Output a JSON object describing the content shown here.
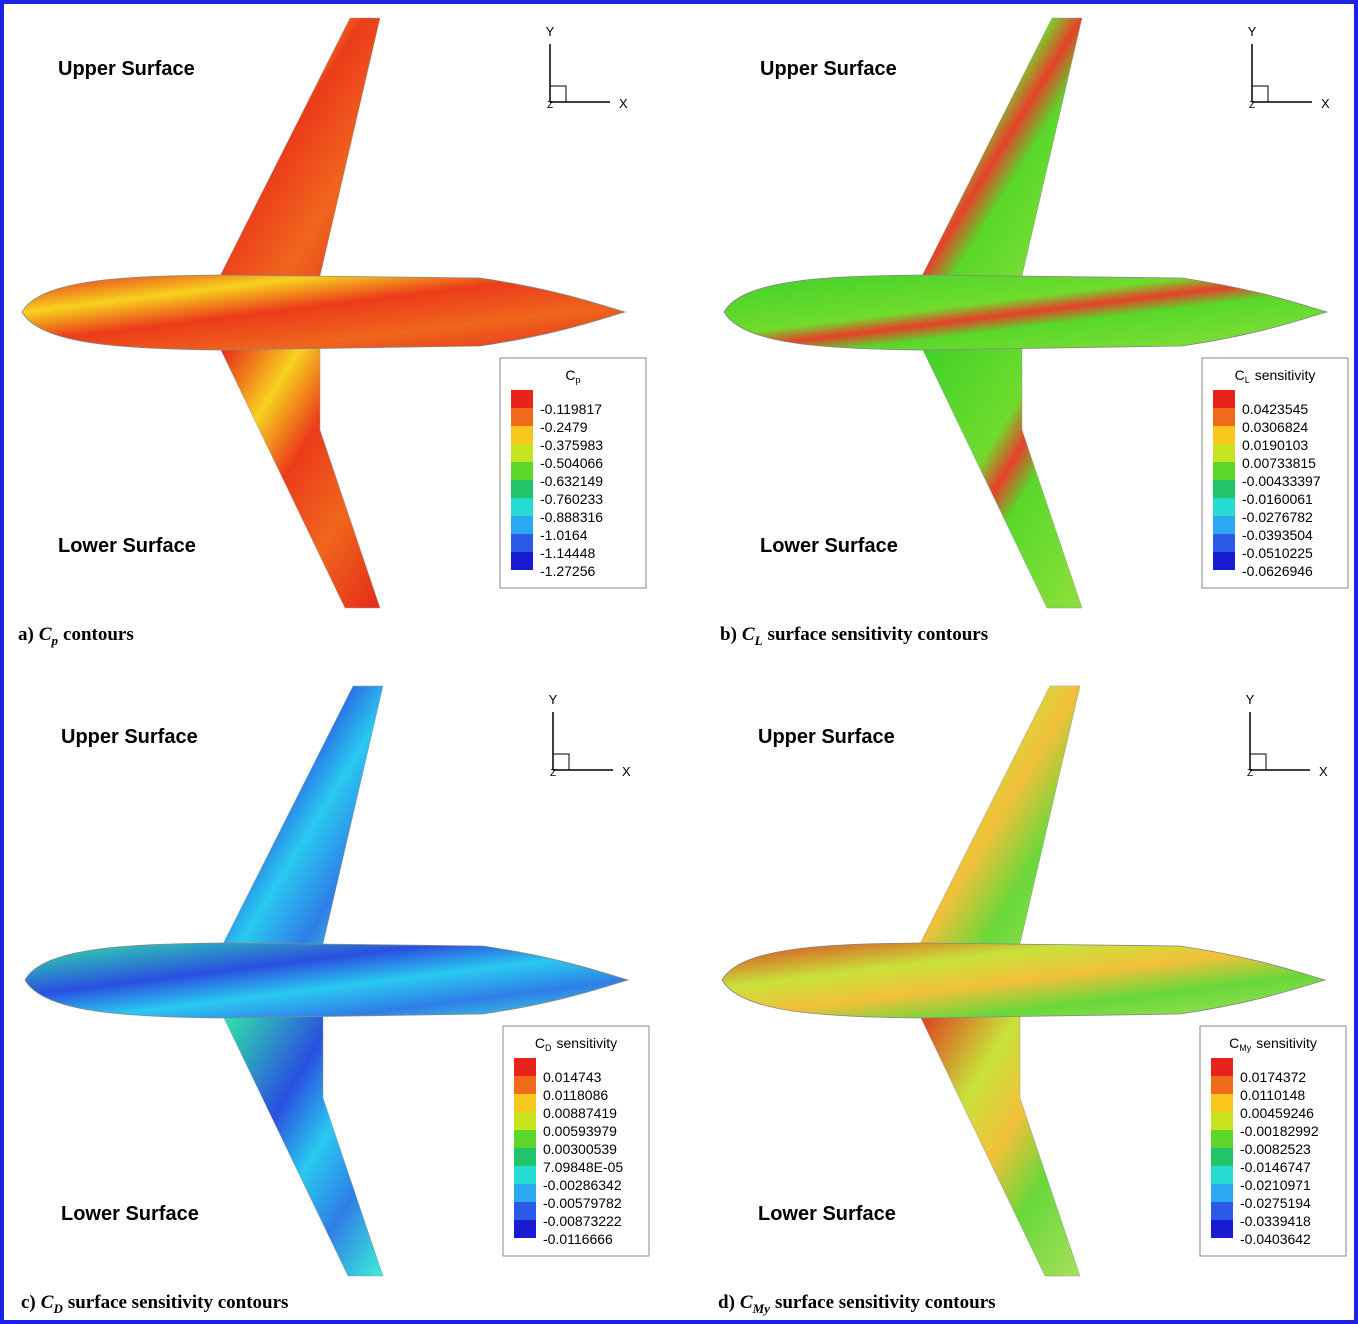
{
  "panels": [
    {
      "upper": "Upper Surface",
      "lower": "Lower Surface",
      "axes": {
        "y": "Y",
        "x": "X",
        "z": "Z"
      },
      "legend": {
        "symbol": "C",
        "subscript": "p",
        "labels": [
          "-0.119817",
          "-0.2479",
          "-0.375983",
          "-0.504066",
          "-0.632149",
          "-0.760233",
          "-0.888316",
          "-1.0164",
          "-1.14448",
          "-1.27256"
        ]
      },
      "caption": {
        "label": "a)",
        "symbol": "C",
        "subscript": "p",
        "text": "contours"
      }
    },
    {
      "upper": "Upper Surface",
      "lower": "Lower Surface",
      "axes": {
        "y": "Y",
        "x": "X",
        "z": "Z"
      },
      "legend": {
        "symbol": "C",
        "subscript": "L",
        "text": "sensitivity",
        "labels": [
          "0.0423545",
          "0.0306824",
          "0.0190103",
          "0.00733815",
          "-0.00433397",
          "-0.0160061",
          "-0.0276782",
          "-0.0393504",
          "-0.0510225",
          "-0.0626946"
        ]
      },
      "caption": {
        "label": "b)",
        "symbol": "C",
        "subscript": "L",
        "text": "surface sensitivity contours"
      }
    },
    {
      "upper": "Upper Surface",
      "lower": "Lower Surface",
      "axes": {
        "y": "Y",
        "x": "X",
        "z": "Z"
      },
      "legend": {
        "symbol": "C",
        "subscript": "D",
        "text": "sensitivity",
        "labels": [
          "0.014743",
          "0.0118086",
          "0.00887419",
          "0.00593979",
          "0.00300539",
          "7.09848E-05",
          "-0.00286342",
          "-0.00579782",
          "-0.00873222",
          "-0.0116666"
        ]
      },
      "caption": {
        "label": "c)",
        "symbol": "C",
        "subscript": "D",
        "text": "surface sensitivity contours"
      }
    },
    {
      "upper": "Upper Surface",
      "lower": "Lower Surface",
      "axes": {
        "y": "Y",
        "x": "X",
        "z": "Z"
      },
      "legend": {
        "symbol": "C",
        "subscript": "My",
        "text": "sensitivity",
        "labels": [
          "0.0174372",
          "0.0110148",
          "0.00459246",
          "-0.00182992",
          "-0.0082523",
          "-0.0146747",
          "-0.0210971",
          "-0.0275194",
          "-0.0339418",
          "-0.0403642"
        ]
      },
      "caption": {
        "label": "d)",
        "symbol": "C",
        "subscript": "My",
        "text": "surface sensitivity contours"
      }
    }
  ]
}
